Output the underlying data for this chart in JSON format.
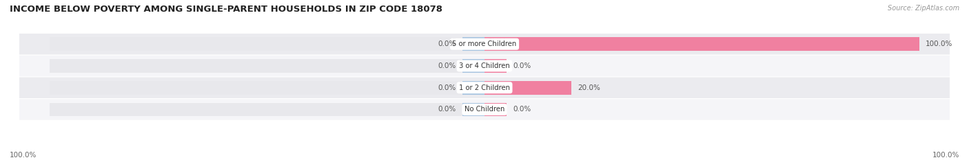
{
  "title": "INCOME BELOW POVERTY AMONG SINGLE-PARENT HOUSEHOLDS IN ZIP CODE 18078",
  "source": "Source: ZipAtlas.com",
  "categories": [
    "No Children",
    "1 or 2 Children",
    "3 or 4 Children",
    "5 or more Children"
  ],
  "single_father": [
    0.0,
    0.0,
    0.0,
    0.0
  ],
  "single_mother": [
    0.0,
    20.0,
    0.0,
    100.0
  ],
  "father_color": "#a8c4e0",
  "mother_color": "#f080a0",
  "bar_bg_color": "#e8e8ec",
  "row_bg_even": "#f5f5f8",
  "row_bg_odd": "#ebebef",
  "background_color": "#ffffff",
  "title_fontsize": 9.5,
  "label_fontsize": 7.5,
  "x_left_label": "100.0%",
  "x_right_label": "100.0%",
  "bar_min_display": 5.0
}
